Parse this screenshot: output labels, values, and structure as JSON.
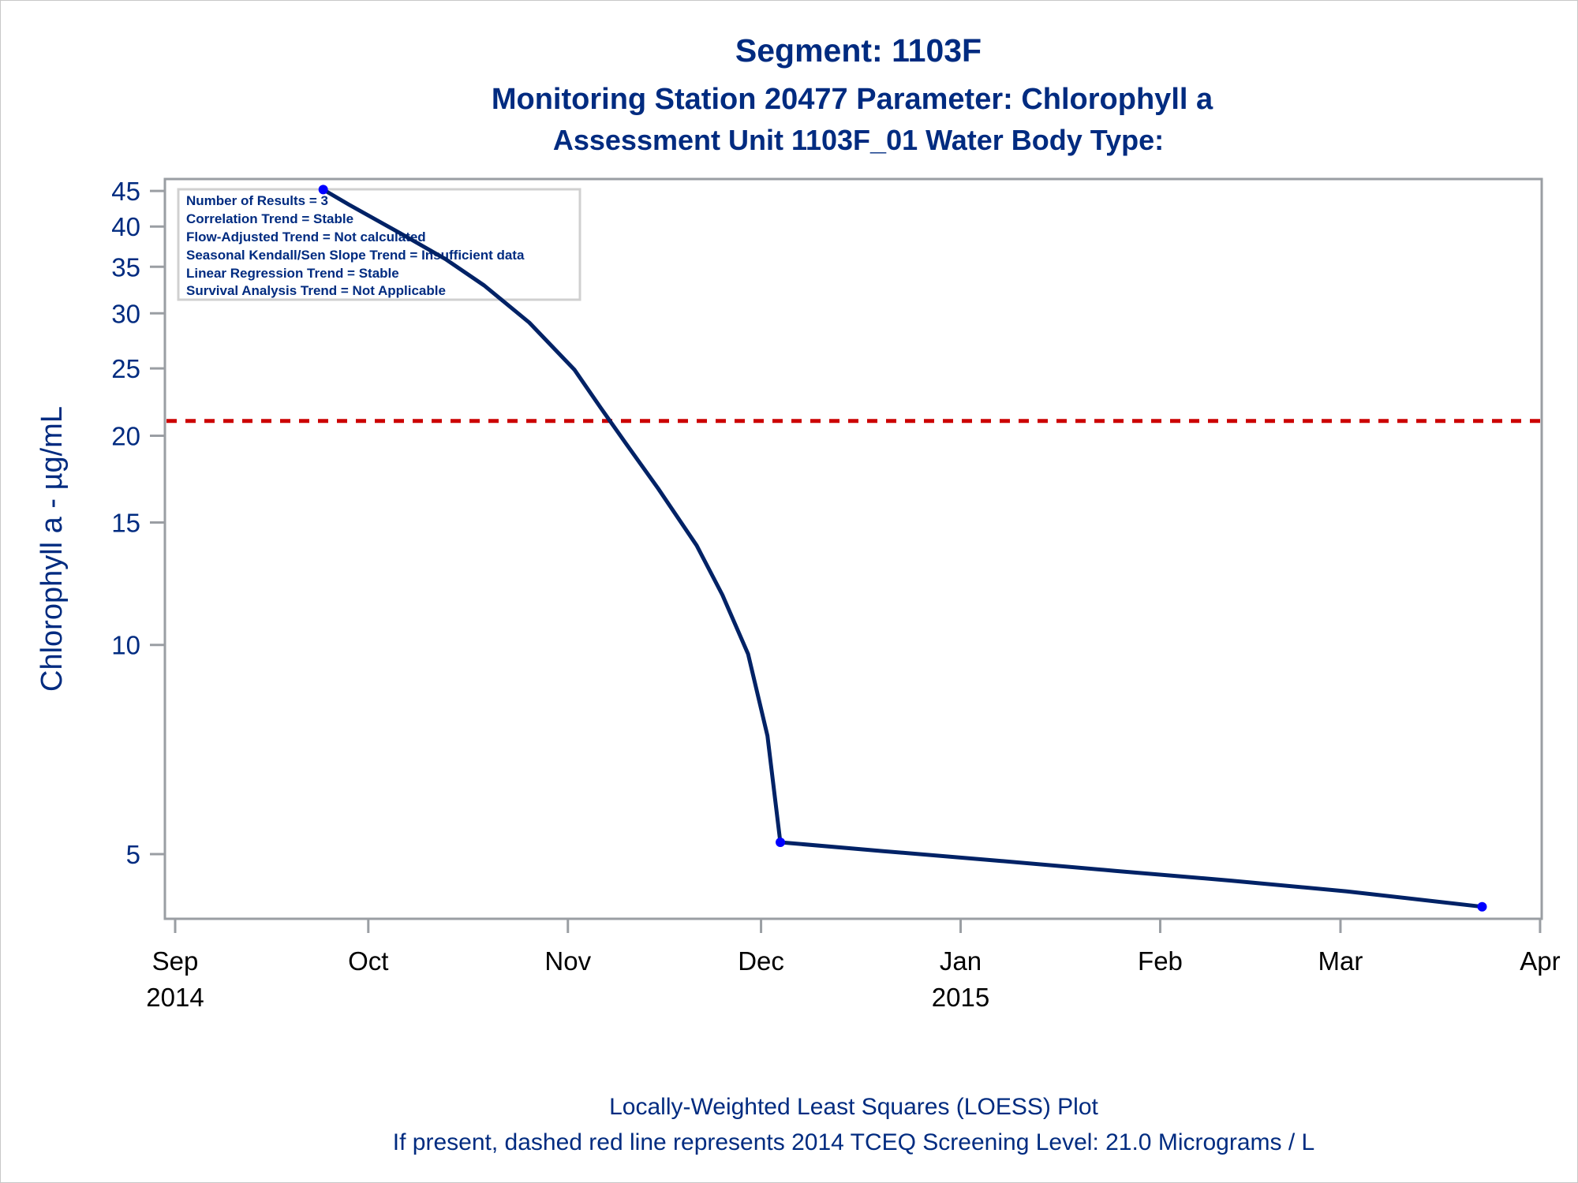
{
  "titles": {
    "line1": "Segment: 1103F",
    "line2": "Monitoring Station 20477 Parameter: Chlorophyll a",
    "line3": "Assessment Unit 1103F_01   Water Body Type:"
  },
  "footnotes": {
    "line1": "Locally-Weighted Least Squares (LOESS) Plot",
    "line2": "If present, dashed red line represents 2014 TCEQ Screening Level: 21.0 Micrograms / L"
  },
  "inset_box": {
    "lines": [
      "Number of Results = 3",
      "Correlation Trend = Stable",
      "Flow-Adjusted Trend = Not calculated",
      "Seasonal Kendall/Sen Slope Trend = Insufficient data",
      "Linear Regression Trend = Stable",
      "Survival Analysis Trend = Not Applicable"
    ]
  },
  "colors": {
    "text": "#002b80",
    "curve": "#002266",
    "points": "#0000ff",
    "reference_line": "#cc0000",
    "axis": "#9a9ea3"
  },
  "chart_data": {
    "type": "line",
    "title": "Segment: 1103F",
    "subtitle": "Monitoring Station 20477 Parameter: Chlorophyll a / Assessment Unit 1103F_01   Water Body Type:",
    "xlabel": "",
    "ylabel": "Chlorophyll a -  µg/mL",
    "yscale": "log",
    "ylim": [
      4.0,
      46
    ],
    "xlim": [
      "2014-08-30",
      "2015-04-04"
    ],
    "y_ticks": [
      5,
      10,
      15,
      20,
      25,
      30,
      35,
      40,
      45
    ],
    "x_ticks": [
      {
        "date": "2014-09-01",
        "label": "Sep",
        "sublabel": "2014"
      },
      {
        "date": "2014-10-01",
        "label": "Oct",
        "sublabel": ""
      },
      {
        "date": "2014-11-01",
        "label": "Nov",
        "sublabel": ""
      },
      {
        "date": "2014-12-01",
        "label": "Dec",
        "sublabel": ""
      },
      {
        "date": "2015-01-01",
        "label": "Jan",
        "sublabel": "2015"
      },
      {
        "date": "2015-02-01",
        "label": "Feb",
        "sublabel": ""
      },
      {
        "date": "2015-03-01",
        "label": "Mar",
        "sublabel": ""
      },
      {
        "date": "2015-04-01",
        "label": "Apr",
        "sublabel": ""
      }
    ],
    "grid": false,
    "legend": "none",
    "points": [
      {
        "date": "2014-09-24",
        "value": 45.2
      },
      {
        "date": "2014-12-04",
        "value": 5.2
      },
      {
        "date": "2015-03-23",
        "value": 4.2
      }
    ],
    "series": [
      {
        "name": "LOESS fit",
        "points": [
          {
            "date": "2014-09-24",
            "value": 45.2
          },
          {
            "date": "2014-09-28",
            "value": 43.0
          },
          {
            "date": "2014-10-06",
            "value": 39.1
          },
          {
            "date": "2014-10-13",
            "value": 35.9
          },
          {
            "date": "2014-10-19",
            "value": 32.9
          },
          {
            "date": "2014-10-26",
            "value": 29.1
          },
          {
            "date": "2014-11-02",
            "value": 24.9
          },
          {
            "date": "2014-11-06",
            "value": 22.0
          },
          {
            "date": "2014-11-10",
            "value": 19.5
          },
          {
            "date": "2014-11-15",
            "value": 16.8
          },
          {
            "date": "2014-11-21",
            "value": 13.9
          },
          {
            "date": "2014-11-25",
            "value": 11.8
          },
          {
            "date": "2014-11-29",
            "value": 9.7
          },
          {
            "date": "2014-12-02",
            "value": 7.4
          },
          {
            "date": "2014-12-04",
            "value": 5.2
          },
          {
            "date": "2014-12-20",
            "value": 5.05
          },
          {
            "date": "2015-01-07",
            "value": 4.89
          },
          {
            "date": "2015-01-25",
            "value": 4.73
          },
          {
            "date": "2015-02-12",
            "value": 4.58
          },
          {
            "date": "2015-03-02",
            "value": 4.42
          },
          {
            "date": "2015-03-23",
            "value": 4.2
          }
        ]
      }
    ],
    "reference_lines": [
      {
        "axis": "y",
        "value": 21.0,
        "style": "dashed",
        "color": "#cc0000",
        "label": "2014 TCEQ Screening Level: 21.0 Micrograms / L"
      }
    ]
  }
}
